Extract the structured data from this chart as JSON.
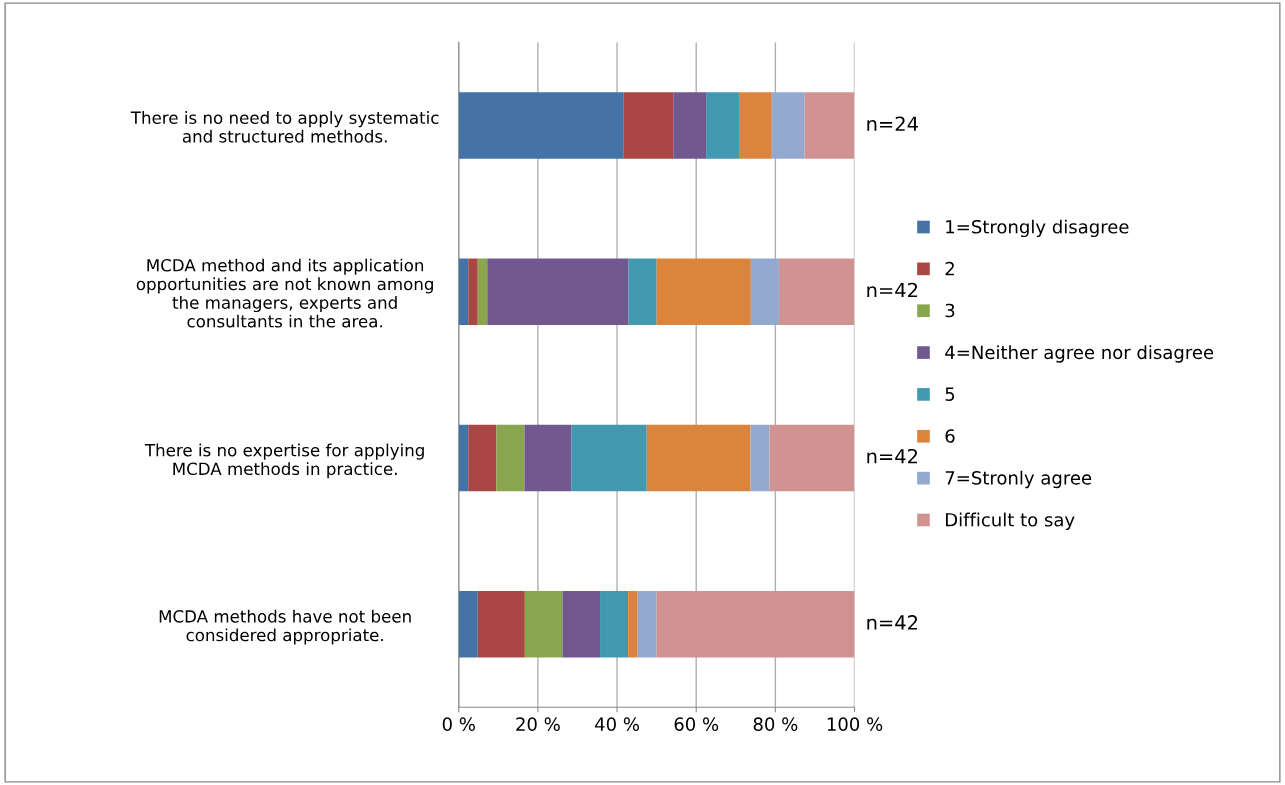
{
  "chart_data": {
    "type": "bar",
    "orientation": "horizontal",
    "stacked": true,
    "categories": [
      "There is no need to apply systematic\nand structured methods.",
      "MCDA method and its application\nopportunities are not known among\nthe managers, experts and\nconsultants in the area.",
      "There is no expertise for applying\nMCDA methods in practice.",
      "MCDA methods have not been\nconsidered appropriate."
    ],
    "series": [
      {
        "name": "1=Strongly disagree",
        "color": "#4572a7",
        "values": [
          41.7,
          2.4,
          2.4,
          4.8
        ]
      },
      {
        "name": "2",
        "color": "#aa4643",
        "values": [
          12.5,
          2.4,
          7.1,
          11.9
        ]
      },
      {
        "name": "3",
        "color": "#89a54e",
        "values": [
          0,
          2.4,
          7.1,
          9.5
        ]
      },
      {
        "name": "4=Neither agree nor disagree",
        "color": "#71588f",
        "values": [
          8.3,
          35.7,
          11.9,
          9.5
        ]
      },
      {
        "name": "5",
        "color": "#4198af",
        "values": [
          8.3,
          7.1,
          19.0,
          7.1
        ]
      },
      {
        "name": "6",
        "color": "#db843d",
        "values": [
          8.3,
          23.8,
          26.2,
          2.4
        ]
      },
      {
        "name": "7=Stronly agree",
        "color": "#93a9cf",
        "values": [
          8.3,
          7.1,
          4.8,
          4.8
        ]
      },
      {
        "name": "Difficult to say",
        "color": "#d19392",
        "values": [
          12.5,
          19.0,
          21.4,
          50.0
        ]
      }
    ],
    "xlim": [
      0,
      100
    ],
    "xticks": [
      {
        "value": 0,
        "label": "0 %"
      },
      {
        "value": 20,
        "label": "20 %"
      },
      {
        "value": 40,
        "label": "40 %"
      },
      {
        "value": 60,
        "label": "60 %"
      },
      {
        "value": 80,
        "label": "80 %"
      },
      {
        "value": 100,
        "label": "100 %"
      }
    ],
    "grid": "x",
    "legend": "right",
    "annotations": [
      "n=24",
      "n=42",
      "n=42",
      "n=42"
    ]
  }
}
